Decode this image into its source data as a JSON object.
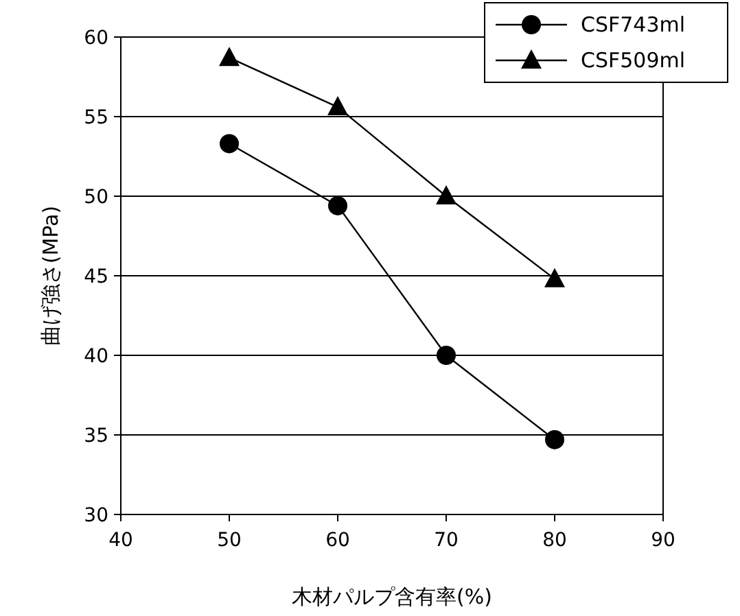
{
  "chart_data": {
    "type": "line",
    "xlabel": "木材パルプ含有率(%)",
    "ylabel": "曲げ強さ(MPa)",
    "x": [
      50,
      60,
      70,
      80
    ],
    "series": [
      {
        "name": "CSF743ml",
        "color": "#000000",
        "marker": "circle",
        "values": [
          53.3,
          49.4,
          40.0,
          34.7
        ]
      },
      {
        "name": "CSF509ml",
        "color": "#000000",
        "marker": "triangle",
        "values": [
          58.7,
          55.6,
          50.0,
          44.8
        ]
      }
    ],
    "xlim": [
      40,
      90
    ],
    "xticks": [
      40,
      50,
      60,
      70,
      80,
      90
    ],
    "ylim": [
      30,
      60
    ],
    "yticks": [
      30,
      35,
      40,
      45,
      50,
      55,
      60
    ],
    "grid": "y",
    "legend": "top right",
    "line_style": "solid"
  }
}
